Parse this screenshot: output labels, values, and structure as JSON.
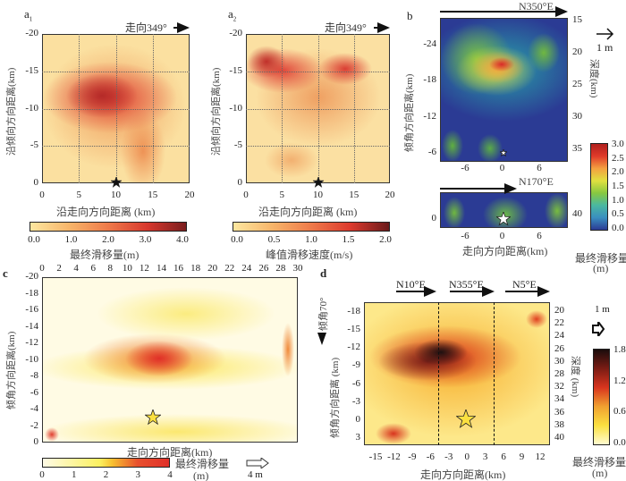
{
  "colors": {
    "a_low": "#fdeaa8",
    "a_high": "#b8242a",
    "b_low": "#2b3b94",
    "b_high": "#d62a2a",
    "c_low": "#fffbe6",
    "c_high": "#e03a2a",
    "d_low": "#fff7b0",
    "d_high": "#1a0c0c"
  },
  "chart_data": [
    {
      "panel": "a1",
      "type": "heatmap",
      "label": "a",
      "sub": "1",
      "direction": "走向349°",
      "xlabel": "沿走向方向距离 (km)",
      "ylabel": "沿倾向方向距离(km)",
      "xticks": [
        "0",
        "5",
        "10",
        "15",
        "20"
      ],
      "yticks": [
        "-20",
        "-15",
        "-10",
        "-5",
        "0"
      ],
      "xlim": [
        0,
        20
      ],
      "ylim": [
        -20,
        0
      ],
      "grid": true,
      "hypocenter": [
        10,
        0
      ],
      "peak": {
        "x": 8,
        "y": -12,
        "value": 3.5
      },
      "colorbar": {
        "ticks": [
          "0.0",
          "1.0",
          "2.0",
          "3.0",
          "4.0"
        ],
        "range": [
          0,
          4
        ],
        "title": "最终滑移量(m)"
      }
    },
    {
      "panel": "a2",
      "type": "heatmap",
      "label": "a",
      "sub": "2",
      "direction": "走向349°",
      "xlabel": "沿走向方向距离 (km)",
      "ylabel": "沿倾向方向距离(km)",
      "xticks": [
        "0",
        "5",
        "10",
        "15",
        "20"
      ],
      "yticks": [
        "-20",
        "-15",
        "-10",
        "-5",
        "0"
      ],
      "xlim": [
        0,
        20
      ],
      "ylim": [
        -20,
        0
      ],
      "grid": true,
      "hypocenter": [
        10,
        0
      ],
      "peaks": [
        {
          "x": 3,
          "y": -16,
          "value": 1.8
        },
        {
          "x": 13.5,
          "y": -15,
          "value": 1.6
        }
      ],
      "colorbar": {
        "ticks": [
          "0.0",
          "0.5",
          "1.0",
          "1.5",
          "2.0"
        ],
        "range": [
          0,
          2.2
        ],
        "title": "峰值滑移速度(m/s)"
      }
    },
    {
      "panel": "b",
      "type": "heatmap",
      "label": "b",
      "direction_upper": "N350°E",
      "direction_lower": "N170°E",
      "xlabel": "走向方向距离(km)",
      "ylabel": "倾角方向距离(km)",
      "ylabel_right": "深度(km)",
      "xticks": [
        "-6",
        "0",
        "6"
      ],
      "yticks_upper": [
        "-24",
        "-18",
        "-12",
        "-6"
      ],
      "depth_ticks_upper": [
        "15",
        "20",
        "25",
        "30",
        "35"
      ],
      "yticks_lower": [
        "0"
      ],
      "depth_ticks_lower": [
        "40"
      ],
      "peak": {
        "x": -1,
        "y": -21,
        "value": 3.0
      },
      "scale_arrow": "1 m",
      "colorbar": {
        "ticks": [
          "3.0",
          "2.5",
          "2.0",
          "1.5",
          "1.0",
          "0.5",
          "0.0"
        ],
        "range": [
          0,
          3
        ],
        "title": "最终滑移量",
        "unit": "(m)"
      }
    },
    {
      "panel": "c",
      "type": "heatmap",
      "label": "c",
      "xlabel": "走向方向距离(km)",
      "ylabel": "倾角方向距离(km)",
      "xticks": [
        "0",
        "2",
        "4",
        "6",
        "8",
        "10",
        "12",
        "14",
        "16",
        "18",
        "20",
        "22",
        "24",
        "26",
        "28",
        "30"
      ],
      "yticks": [
        "-20",
        "-18",
        "-16",
        "-14",
        "-12",
        "-10",
        "-8",
        "-6",
        "-4",
        "-2",
        "0"
      ],
      "xlim": [
        0,
        30
      ],
      "ylim": [
        -20,
        0
      ],
      "hypocenter": [
        13,
        -3
      ],
      "peak": {
        "x": 13.5,
        "y": -12,
        "value": 4.0
      },
      "scale_arrow": "4 m",
      "colorbar": {
        "ticks": [
          "0",
          "1",
          "2",
          "3",
          "4"
        ],
        "range": [
          0,
          4
        ],
        "title": "最终滑移量",
        "unit": "(m)"
      }
    },
    {
      "panel": "d",
      "type": "heatmap",
      "label": "d",
      "segments": [
        "N10°E",
        "N355°E",
        "N5°E"
      ],
      "dip": "倾角70°",
      "xlabel": "走向方向距离(km)",
      "ylabel": "倾角方向距离 (km)",
      "ylabel_right": "深度 (km)",
      "xticks": [
        "-15",
        "-12",
        "-9",
        "-6",
        "-3",
        "0",
        "3",
        "6",
        "9",
        "12"
      ],
      "yticks": [
        "-18",
        "-15",
        "-12",
        "-9",
        "-6",
        "-3",
        "0",
        "3"
      ],
      "depth_ticks": [
        "20",
        "22",
        "24",
        "26",
        "30",
        "28",
        "32",
        "34",
        "36",
        "38",
        "40"
      ],
      "hypocenter": [
        0,
        0
      ],
      "peak": {
        "x": -4,
        "y": -10,
        "value": 1.8
      },
      "scale_arrow": "1 m",
      "colorbar": {
        "ticks": [
          "1.8",
          "1.2",
          "0.6",
          "0.0"
        ],
        "range": [
          0,
          1.8
        ],
        "title": "最终滑移量",
        "unit": "(m)"
      }
    }
  ]
}
